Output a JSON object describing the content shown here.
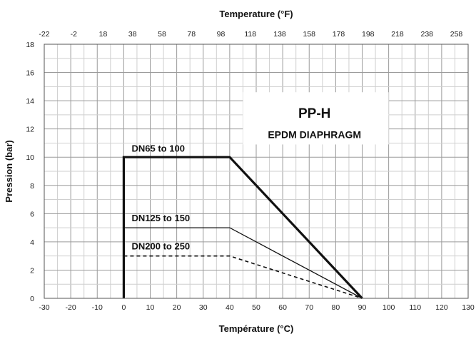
{
  "chart_data": {
    "type": "line",
    "xlabel_top": "Temperature (°F)",
    "xlabel": "Température (°C)",
    "ylabel": "Pression (bar)",
    "xlim": [
      -30,
      130
    ],
    "ylim": [
      0,
      18
    ],
    "xlim_top": [
      -22,
      266
    ],
    "x_ticks": [
      "-30",
      "-20",
      "-10",
      "0",
      "10",
      "20",
      "30",
      "40",
      "50",
      "60",
      "70",
      "80",
      "90",
      "100",
      "110",
      "120",
      "130"
    ],
    "y_ticks": [
      "0",
      "2",
      "4",
      "6",
      "8",
      "10",
      "12",
      "14",
      "16",
      "18"
    ],
    "x_top_ticks": [
      "-22",
      "-2",
      "18",
      "38",
      "58",
      "78",
      "98",
      "118",
      "138",
      "158",
      "178",
      "198",
      "218",
      "238",
      "258"
    ],
    "grid": true,
    "info_box": {
      "title": "PP-H",
      "subtitle": "EPDM DIAPHRAGM"
    },
    "series": [
      {
        "name": "DN65 to 100",
        "style": "thick",
        "x": [
          0,
          0,
          40,
          90
        ],
        "y": [
          0,
          10,
          10,
          0
        ]
      },
      {
        "name": "DN125 to 150",
        "style": "thin",
        "x": [
          0,
          40,
          90
        ],
        "y": [
          5,
          5,
          0
        ]
      },
      {
        "name": "DN200 to 250",
        "style": "dashed",
        "x": [
          0,
          40,
          90
        ],
        "y": [
          3,
          3,
          0
        ]
      }
    ]
  }
}
